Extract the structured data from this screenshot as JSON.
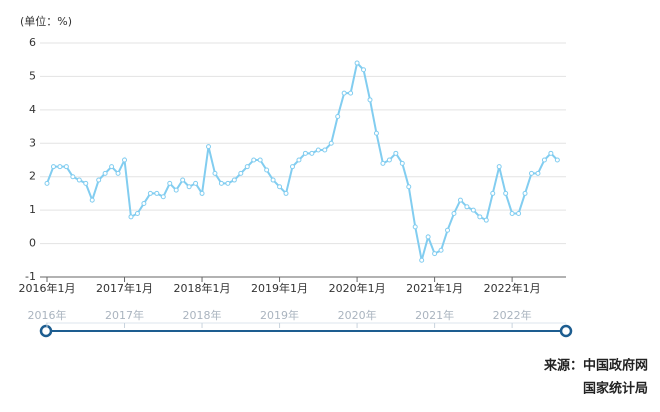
{
  "chart_data": {
    "type": "line",
    "unit_label": "(单位：%)",
    "categories": [
      "2016年1月",
      null,
      null,
      null,
      null,
      null,
      null,
      null,
      null,
      null,
      null,
      null,
      "2017年1月",
      null,
      null,
      null,
      null,
      null,
      null,
      null,
      null,
      null,
      null,
      null,
      "2018年1月",
      null,
      null,
      null,
      null,
      null,
      null,
      null,
      null,
      null,
      null,
      null,
      "2019年1月",
      null,
      null,
      null,
      null,
      null,
      null,
      null,
      null,
      null,
      null,
      null,
      "2020年1月",
      null,
      null,
      null,
      null,
      null,
      null,
      null,
      null,
      null,
      null,
      null,
      "2021年1月",
      null,
      null,
      null,
      null,
      null,
      null,
      null,
      null,
      null,
      null,
      null,
      "2022年1月",
      null,
      null,
      null,
      null,
      null,
      null,
      null
    ],
    "values": [
      1.8,
      2.3,
      2.3,
      2.3,
      2.0,
      1.9,
      1.8,
      1.3,
      1.9,
      2.1,
      2.3,
      2.1,
      2.5,
      0.8,
      0.9,
      1.2,
      1.5,
      1.5,
      1.4,
      1.8,
      1.6,
      1.9,
      1.7,
      1.8,
      1.5,
      2.9,
      2.1,
      1.8,
      1.8,
      1.9,
      2.1,
      2.3,
      2.5,
      2.5,
      2.2,
      1.9,
      1.7,
      1.5,
      2.3,
      2.5,
      2.7,
      2.7,
      2.8,
      2.8,
      3.0,
      3.8,
      4.5,
      4.5,
      5.4,
      5.2,
      4.3,
      3.3,
      2.4,
      2.5,
      2.7,
      2.4,
      1.7,
      0.5,
      -0.5,
      0.2,
      -0.3,
      -0.2,
      0.4,
      0.9,
      1.3,
      1.1,
      1.0,
      0.8,
      0.7,
      1.5,
      2.3,
      1.5,
      0.9,
      0.9,
      1.5,
      2.1,
      2.1,
      2.5,
      2.7,
      2.5
    ],
    "color": "#82cdf0",
    "ylim": [
      -1,
      6
    ],
    "yticks": [
      -1,
      0,
      1,
      2,
      3,
      4,
      5,
      6
    ],
    "grid": true,
    "slider_labels": [
      "2016年",
      "2017年",
      "2018年",
      "2019年",
      "2020年",
      "2021年",
      "2022年"
    ],
    "source": [
      "来源：中国政府网",
      "国家统计局"
    ]
  }
}
